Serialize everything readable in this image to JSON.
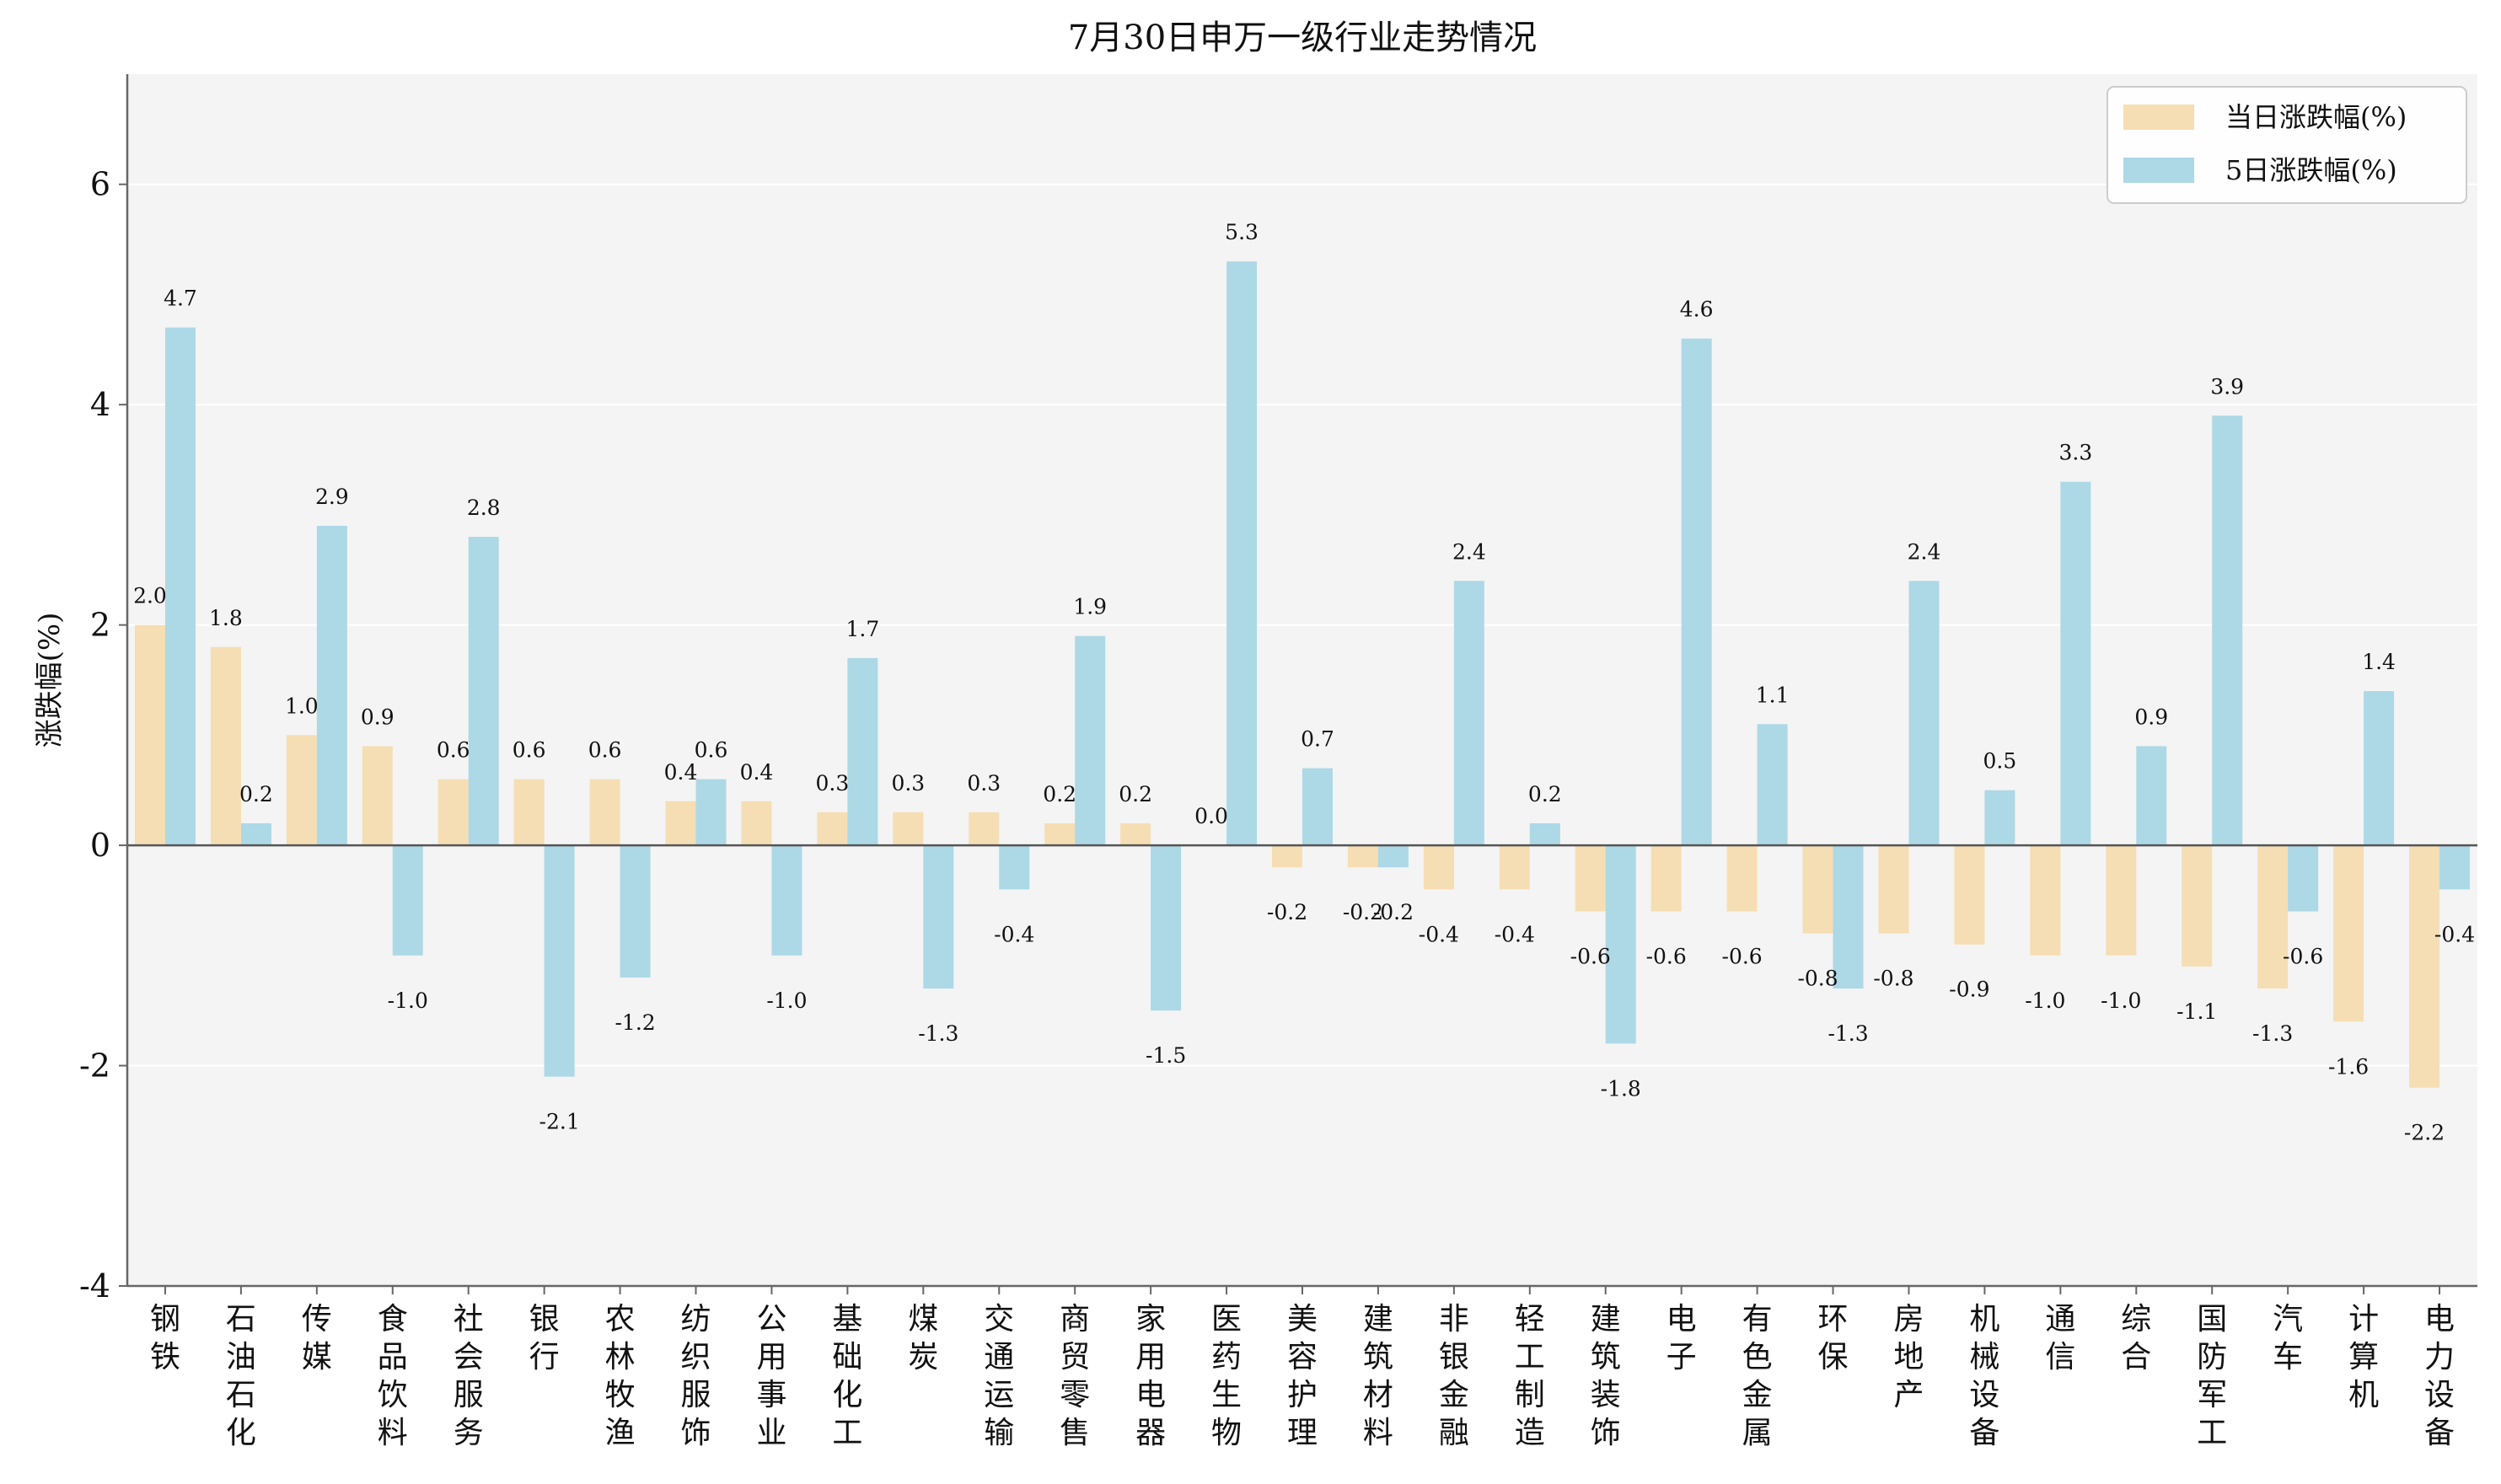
{
  "chart_data": {
    "type": "bar",
    "title": "7月30日申万一级行业走势情况",
    "xlabel": "",
    "ylabel": "涨跌幅(%)",
    "ylim": [
      -4,
      7
    ],
    "yticks": [
      -4,
      -2,
      0,
      2,
      4,
      6
    ],
    "grid": "horizontal",
    "legend_position": "top-right",
    "colors": {
      "daily": "#F5DEB3",
      "five_day": "#ADD8E6",
      "plot_bg": "#F4F4F4",
      "axis": "#666666"
    },
    "categories": [
      "钢铁",
      "石油石化",
      "传媒",
      "食品饮料",
      "社会服务",
      "银行",
      "农林牧渔",
      "纺织服饰",
      "公用事业",
      "基础化工",
      "煤炭",
      "交通运输",
      "商贸零售",
      "家用电器",
      "医药生物",
      "美容护理",
      "建筑材料",
      "非银金融",
      "轻工制造",
      "建筑装饰",
      "电子",
      "有色金属",
      "环保",
      "房地产",
      "机械设备",
      "通信",
      "综合",
      "国防军工",
      "汽车",
      "计算机",
      "电力设备"
    ],
    "series": [
      {
        "name": "当日涨跌幅(%)",
        "values": [
          2.0,
          1.8,
          1.0,
          0.9,
          0.6,
          0.6,
          0.6,
          0.4,
          0.4,
          0.3,
          0.3,
          0.3,
          0.2,
          0.2,
          0.0,
          -0.2,
          -0.2,
          -0.4,
          -0.4,
          -0.6,
          -0.6,
          -0.6,
          -0.8,
          -0.8,
          -0.9,
          -1.0,
          -1.0,
          -1.1,
          -1.3,
          -1.6,
          -2.2
        ]
      },
      {
        "name": "5日涨跌幅(%)",
        "values": [
          4.7,
          0.2,
          2.9,
          -1.0,
          2.8,
          -2.1,
          -1.2,
          0.6,
          -1.0,
          1.7,
          -1.3,
          -0.4,
          1.9,
          -1.5,
          5.3,
          0.7,
          -0.2,
          2.4,
          0.2,
          -1.8,
          4.6,
          1.1,
          -1.3,
          2.4,
          0.5,
          3.3,
          0.9,
          3.9,
          -0.6,
          1.4,
          -0.4
        ]
      }
    ]
  }
}
